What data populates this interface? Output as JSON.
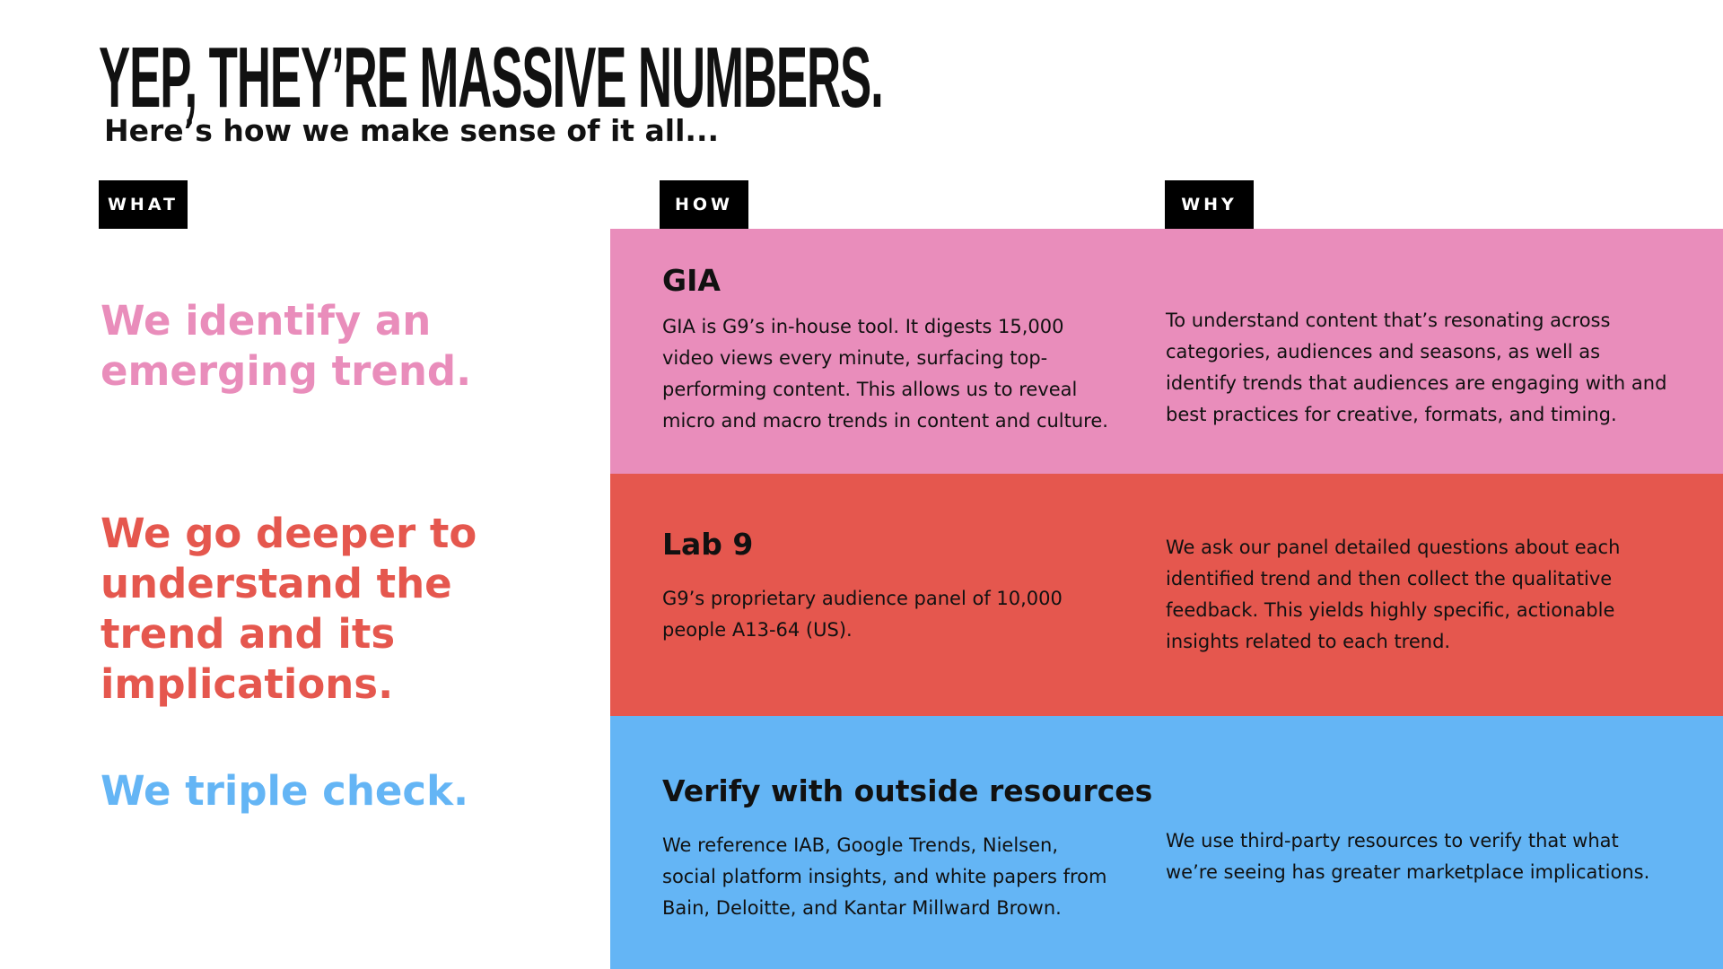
{
  "header": {
    "title": "YEP, THEY’RE MASSIVE NUMBERS.",
    "subtitle": "Here’s how we make sense of it all..."
  },
  "columns": [
    "WHAT",
    "HOW",
    "WHY"
  ],
  "rows": [
    {
      "what": "We identify an emerging trend.",
      "how_title": "GIA",
      "how_text": "GIA is G9’s in-house tool. It digests 15,000 video views every minute, surfacing top-performing content. This allows us to reveal micro and macro trends in content and culture.",
      "why": "To understand content that’s resonating across categories, audiences and seasons, as well as identify trends that audiences are engaging with and best practices for creative, formats, and timing."
    },
    {
      "what": "We go deeper to understand the trend and its implications.",
      "how_title": "Lab 9",
      "how_text": "G9’s proprietary audience panel of 10,000 people A13-64 (US).",
      "why": "We ask our panel detailed questions about each identified trend and then collect the qualitative feedback. This yields highly specific, actionable insights related to each trend."
    },
    {
      "what": "We triple check.",
      "how_title": "Verify with outside resources",
      "how_text": "We reference IAB, Google Trends, Nielsen, social platform insights, and white papers from Bain, Deloitte, and Kantar Millward Brown.",
      "why": "We use third-party resources to verify that what we’re seeing has greater marketplace implications."
    }
  ]
}
